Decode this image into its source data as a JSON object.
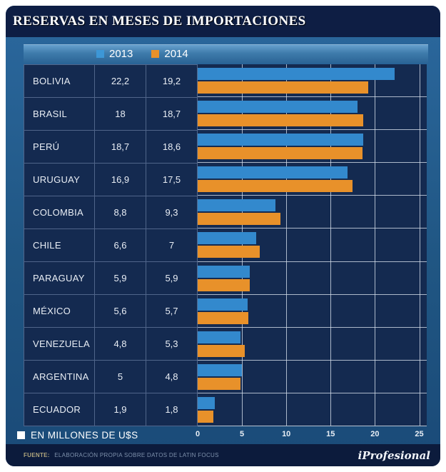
{
  "title": "RESERVAS EN MESES DE IMPORTACIONES",
  "legend": {
    "items": [
      {
        "label": "2013",
        "color": "#3d97d6"
      },
      {
        "label": "2014",
        "color": "#e8912a"
      }
    ]
  },
  "chart_data": {
    "type": "bar",
    "orientation": "horizontal",
    "categories": [
      "BOLIVIA",
      "BRASIL",
      "PERÚ",
      "URUGUAY",
      "COLOMBIA",
      "CHILE",
      "PARAGUAY",
      "MÉXICO",
      "VENEZUELA",
      "ARGENTINA",
      "ECUADOR"
    ],
    "series": [
      {
        "name": "2013",
        "color": "#3389cd",
        "values": [
          22.2,
          18,
          18.7,
          16.9,
          8.8,
          6.6,
          5.9,
          5.6,
          4.8,
          5,
          1.9
        ]
      },
      {
        "name": "2014",
        "color": "#e8912a",
        "values": [
          19.2,
          18.7,
          18.6,
          17.5,
          9.3,
          7,
          5.9,
          5.7,
          5.3,
          4.8,
          1.8
        ]
      }
    ],
    "title": "RESERVAS EN MESES DE IMPORTACIONES",
    "xlabel": "",
    "ylabel": "",
    "xlim": [
      0,
      25
    ],
    "xticks": [
      0,
      5,
      10,
      15,
      20,
      25
    ],
    "grid": true,
    "legend_position": "top"
  },
  "table": {
    "rows": [
      {
        "country": "BOLIVIA",
        "v2013": "22,2",
        "v2014": "19,2"
      },
      {
        "country": "BRASIL",
        "v2013": "18",
        "v2014": "18,7"
      },
      {
        "country": "PERÚ",
        "v2013": "18,7",
        "v2014": "18,6"
      },
      {
        "country": "URUGUAY",
        "v2013": "16,9",
        "v2014": "17,5"
      },
      {
        "country": "COLOMBIA",
        "v2013": "8,8",
        "v2014": "9,3"
      },
      {
        "country": "CHILE",
        "v2013": "6,6",
        "v2014": "7"
      },
      {
        "country": "PARAGUAY",
        "v2013": "5,9",
        "v2014": "5,9"
      },
      {
        "country": "MÉXICO",
        "v2013": "5,6",
        "v2014": "5,7"
      },
      {
        "country": "VENEZUELA",
        "v2013": "4,8",
        "v2014": "5,3"
      },
      {
        "country": "ARGENTINA",
        "v2013": "5",
        "v2014": "4,8"
      },
      {
        "country": "ECUADOR",
        "v2013": "1,9",
        "v2014": "1,8"
      }
    ]
  },
  "footnote_unit": {
    "label": "EN MILLONES DE U$S"
  },
  "footer": {
    "source_label": "FUENTE:",
    "source_text": "ELABORACIÓN PROPIA SOBRE DATOS DE LATIN FOCUS",
    "brand": "iProfesional"
  },
  "colors": {
    "bar_2013": "#3389cd",
    "bar_2014": "#e8912a",
    "panel_bg": "#142a50",
    "frame_blue": "#205683",
    "header_navy": "#0e1e44"
  }
}
